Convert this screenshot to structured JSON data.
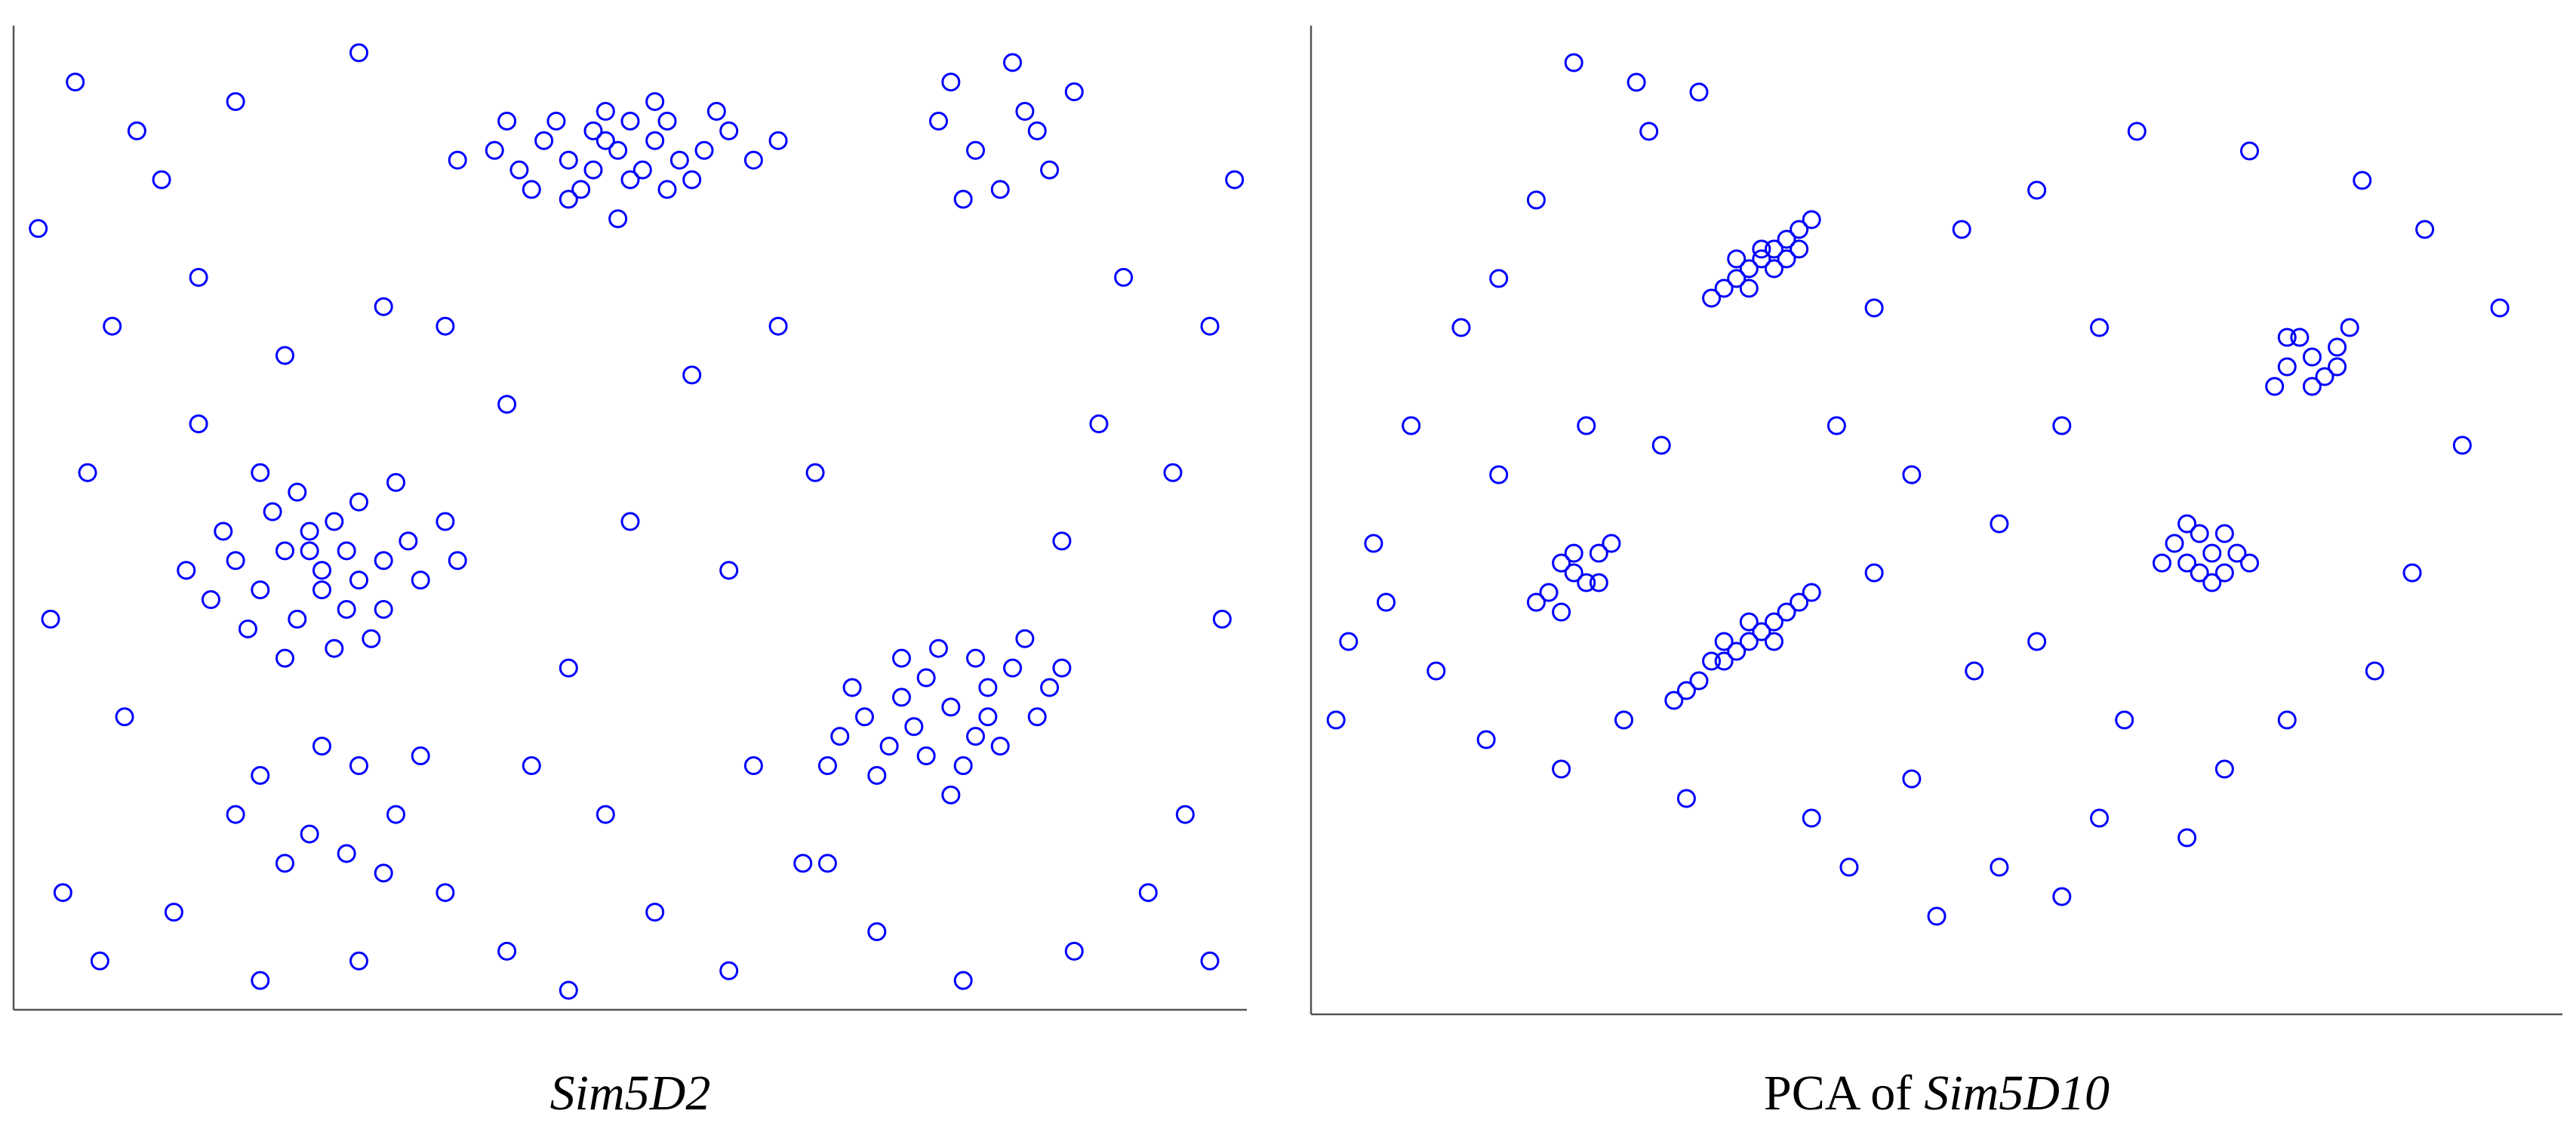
{
  "chart_data": [
    {
      "type": "scatter",
      "color": "#0000ff",
      "xlim": [
        0,
        100
      ],
      "ylim": [
        0,
        100
      ],
      "caption": [
        {
          "text": "Sim5D2",
          "italic": true
        }
      ],
      "x": [
        49,
        45,
        52,
        47,
        54,
        43,
        50,
        56,
        41,
        48,
        53,
        46,
        58,
        44,
        51,
        39,
        55,
        47,
        52,
        42,
        60,
        48,
        50,
        45,
        57,
        40,
        53,
        62,
        36,
        49,
        25,
        22,
        28,
        20,
        24,
        27,
        30,
        18,
        23,
        26,
        32,
        21,
        29,
        16,
        25,
        19,
        33,
        27,
        23,
        14,
        35,
        28,
        22,
        30,
        17,
        26,
        36,
        20,
        31,
        24,
        76,
        73,
        79,
        71,
        78,
        81,
        74,
        69,
        77,
        83,
        72,
        75,
        80,
        67,
        78,
        84,
        70,
        74,
        82,
        76,
        68,
        79,
        72,
        85,
        66,
        76,
        78,
        82,
        84,
        80,
        75,
        86,
        83,
        77,
        81,
        20,
        24,
        28,
        31,
        22,
        27,
        33,
        18,
        25,
        30,
        2,
        5,
        8,
        12,
        15,
        6,
        3,
        9,
        4,
        7,
        13,
        20,
        28,
        35,
        40,
        45,
        52,
        58,
        64,
        70,
        77,
        86,
        92,
        97,
        95,
        98,
        94,
        97,
        99,
        90,
        88,
        85,
        62,
        55,
        65,
        58,
        50,
        45,
        40,
        35,
        60,
        48,
        42,
        66,
        15,
        22,
        30,
        10,
        18,
        28
      ],
      "y": [
        88,
        87,
        89,
        90,
        87,
        89,
        85,
        88,
        86,
        92,
        91,
        84,
        90,
        91,
        86,
        88,
        85,
        86,
        93,
        84,
        87,
        89,
        91,
        83,
        92,
        91,
        84,
        89,
        87,
        81,
        45,
        47,
        44,
        43,
        49,
        41,
        46,
        46,
        40,
        50,
        48,
        51,
        38,
        42,
        43,
        39,
        44,
        47,
        53,
        45,
        50,
        52,
        36,
        41,
        49,
        37,
        46,
        55,
        54,
        47,
        31,
        29,
        33,
        27,
        28,
        35,
        34,
        30,
        25,
        30,
        32,
        37,
        27,
        28,
        36,
        33,
        24,
        26,
        38,
        22,
        33,
        30,
        36,
        35,
        25,
        95,
        88,
        92,
        86,
        84,
        91,
        94,
        90,
        83,
        97,
        24,
        18,
        25,
        20,
        15,
        16,
        26,
        20,
        27,
        14,
        80,
        95,
        70,
        85,
        60,
        55,
        40,
        30,
        12,
        5,
        10,
        3,
        5,
        12,
        6,
        2,
        10,
        4,
        15,
        8,
        3,
        6,
        12,
        5,
        20,
        40,
        55,
        70,
        85,
        75,
        60,
        48,
        70,
        65,
        55,
        45,
        50,
        35,
        62,
        70,
        25,
        20,
        25,
        15,
        75,
        67,
        72,
        90,
        93,
        98
      ]
    },
    {
      "type": "scatter",
      "color": "#0000ff",
      "xlim": [
        0,
        100
      ],
      "ylim": [
        0,
        100
      ],
      "caption": [
        {
          "text": "PCA of",
          "italic": false
        },
        {
          "text": "Sim5D10",
          "italic": true
        }
      ],
      "x": [
        36,
        34,
        38,
        35,
        37,
        33,
        39,
        36,
        35,
        38,
        32,
        40,
        37,
        34,
        39,
        80,
        78,
        82,
        79,
        81,
        77,
        83,
        80,
        78,
        82,
        21,
        19,
        23,
        20,
        22,
        24,
        18,
        21,
        23,
        20,
        35,
        33,
        37,
        31,
        39,
        34,
        36,
        30,
        38,
        32,
        35,
        37,
        29,
        40,
        33,
        72,
        70,
        73,
        71,
        74,
        69,
        72,
        70,
        73,
        71,
        75,
        68,
        21,
        26,
        31,
        27,
        18,
        15,
        12,
        8,
        5,
        3,
        2,
        6,
        10,
        14,
        20,
        25,
        30,
        40,
        48,
        55,
        60,
        63,
        70,
        73,
        78,
        85,
        88,
        92,
        95,
        89,
        84,
        75,
        66,
        58,
        52,
        45,
        42,
        48,
        55,
        60,
        63,
        58,
        65,
        53,
        45,
        28,
        22,
        15,
        50,
        43
      ],
      "y": [
        77,
        75,
        79,
        76,
        78,
        74,
        80,
        78,
        74,
        77,
        73,
        81,
        76,
        77,
        78,
        67,
        66,
        68,
        69,
        65,
        64,
        70,
        64,
        69,
        66,
        45,
        43,
        47,
        46,
        44,
        48,
        42,
        47,
        44,
        41,
        38,
        36,
        40,
        34,
        42,
        37,
        39,
        33,
        41,
        36,
        40,
        38,
        32,
        43,
        38,
        47,
        46,
        49,
        45,
        47,
        48,
        44,
        50,
        45,
        49,
        46,
        46,
        97,
        95,
        94,
        90,
        83,
        75,
        70,
        60,
        48,
        38,
        30,
        42,
        35,
        28,
        25,
        30,
        22,
        20,
        24,
        15,
        12,
        20,
        18,
        25,
        30,
        35,
        45,
        58,
        72,
        80,
        85,
        88,
        90,
        84,
        80,
        72,
        60,
        55,
        50,
        60,
        70,
        38,
        30,
        35,
        45,
        58,
        60,
        55,
        10,
        15
      ]
    }
  ]
}
